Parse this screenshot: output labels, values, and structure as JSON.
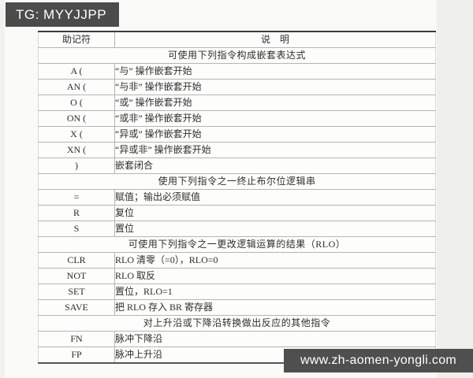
{
  "badge": {
    "label": "TG: MYYJJPP"
  },
  "watermark": {
    "url_text": "www.zh-aomen-yongli.com"
  },
  "colors": {
    "badge_bg": "#4b4b4b",
    "watermark_bg": "#4f4f4f",
    "table_rule_light": "#b5b5b2",
    "table_rule_dark": "#3c3c3a",
    "text": "#2e2e2c"
  },
  "table": {
    "header": {
      "col1": "助记符",
      "col2": "说　明"
    },
    "rows": [
      {
        "type": "section",
        "text": "可使用下列指令构成嵌套表达式"
      },
      {
        "type": "row",
        "mnemonic": "A (",
        "description": "“与” 操作嵌套开始"
      },
      {
        "type": "row",
        "mnemonic": "AN (",
        "description": "“与非” 操作嵌套开始"
      },
      {
        "type": "row",
        "mnemonic": "O (",
        "description": "“或” 操作嵌套开始"
      },
      {
        "type": "row",
        "mnemonic": "ON (",
        "description": "“或非” 操作嵌套开始"
      },
      {
        "type": "row",
        "mnemonic": "X (",
        "description": "“异或” 操作嵌套开始"
      },
      {
        "type": "row",
        "mnemonic": "XN (",
        "description": "“异或非” 操作嵌套开始"
      },
      {
        "type": "row",
        "mnemonic": ")",
        "description": "嵌套闭合"
      },
      {
        "type": "section",
        "text": "使用下列指令之一终止布尔位逻辑串"
      },
      {
        "type": "row",
        "mnemonic": "=",
        "description": "赋值；输出必须赋值"
      },
      {
        "type": "row",
        "mnemonic": "R",
        "description": "复位"
      },
      {
        "type": "row",
        "mnemonic": "S",
        "description": "置位"
      },
      {
        "type": "section",
        "text": "可使用下列指令之一更改逻辑运算的结果（RLO）"
      },
      {
        "type": "row",
        "mnemonic": "CLR",
        "description": "RLO 清零（=0），RLO=0"
      },
      {
        "type": "row",
        "mnemonic": "NOT",
        "description": "RLO 取反"
      },
      {
        "type": "row",
        "mnemonic": "SET",
        "description": "置位，RLO=1"
      },
      {
        "type": "row",
        "mnemonic": "SAVE",
        "description": "把 RLO 存入 BR 寄存器"
      },
      {
        "type": "section",
        "text": "对上升沿或下降沿转换做出反应的其他指令"
      },
      {
        "type": "row",
        "mnemonic": "FN",
        "description": "脉冲下降沿"
      },
      {
        "type": "row",
        "mnemonic": "FP",
        "description": "脉冲上升沿"
      }
    ]
  }
}
